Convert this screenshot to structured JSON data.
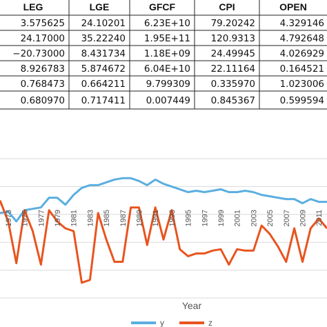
{
  "table": {
    "columns": [
      "LEG",
      "LGE",
      "GFCF",
      "CPI",
      "OPEN"
    ],
    "rows": [
      [
        "3.575625",
        "24.10201",
        "6.23E+10",
        "79.20242",
        "4.329146"
      ],
      [
        "24.17000",
        "35.22240",
        "1.95E+11",
        "120.9313",
        "4.792648"
      ],
      [
        "−20.73000",
        "8.431734",
        "1.18E+09",
        "24.49945",
        "4.026929"
      ],
      [
        "8.926783",
        "5.874672",
        "6.04E+10",
        "22.11164",
        "0.164521"
      ],
      [
        "0.768473",
        "0.664211",
        "9.799309",
        "0.335970",
        "1.023006"
      ],
      [
        "0.680970",
        "0.717411",
        "0.007449",
        "0.845367",
        "0.599594"
      ]
    ]
  },
  "chart_data": {
    "type": "line",
    "xlabel": "Year",
    "ylabel": "",
    "x_ticks": [
      "1973",
      "1975",
      "1977",
      "1979",
      "1981",
      "1983",
      "1985",
      "1987",
      "1989",
      "1991",
      "1993",
      "1995",
      "1997",
      "1999",
      "2001",
      "2003",
      "2005",
      "2007",
      "2009",
      "2011"
    ],
    "x": [
      1972,
      1973,
      1974,
      1975,
      1976,
      1977,
      1978,
      1979,
      1980,
      1981,
      1982,
      1983,
      1984,
      1985,
      1986,
      1987,
      1988,
      1989,
      1990,
      1991,
      1992,
      1993,
      1994,
      1995,
      1996,
      1997,
      1998,
      1999,
      2000,
      2001,
      2002,
      2003,
      2004,
      2005,
      2006,
      2007,
      2008,
      2009,
      2010,
      2011,
      2012
    ],
    "ylim": [
      0,
      10
    ],
    "series": [
      {
        "name": "y",
        "color": "#5aaee0",
        "values": [
          6.1,
          6.2,
          5.5,
          6.3,
          6.4,
          6.5,
          7.2,
          7.2,
          6.7,
          7.4,
          7.9,
          8.1,
          8.1,
          8.3,
          8.5,
          8.6,
          8.6,
          8.4,
          8.1,
          8.5,
          8.2,
          8.0,
          7.8,
          7.6,
          7.7,
          7.6,
          7.7,
          7.8,
          7.6,
          7.6,
          7.7,
          7.6,
          7.4,
          7.3,
          7.2,
          7.1,
          7.1,
          6.8,
          7.1,
          6.9,
          6.9
        ]
      },
      {
        "name": "z",
        "color": "#e8541e",
        "values": [
          7.0,
          5.5,
          2.5,
          6.3,
          4.8,
          2.4,
          6.3,
          5.5,
          5.0,
          4.8,
          1.1,
          1.3,
          6.1,
          4.2,
          2.6,
          2.6,
          6.5,
          6.5,
          3.8,
          6.5,
          4.2,
          6.3,
          3.5,
          3.0,
          3.2,
          3.2,
          3.4,
          3.5,
          2.4,
          3.5,
          3.4,
          3.4,
          5.2,
          4.6,
          3.7,
          2.6,
          5.0,
          2.6,
          5.0,
          5.7,
          5.0
        ]
      }
    ]
  }
}
